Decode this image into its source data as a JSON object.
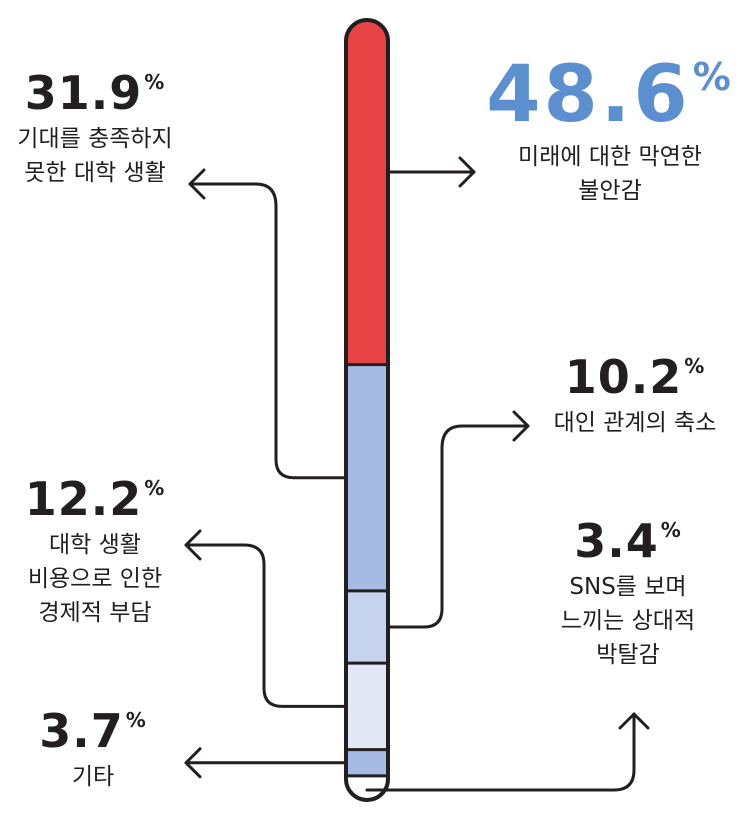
{
  "colors": {
    "red": "#e84344",
    "blue_dark": "#a6bbe3",
    "blue_mid": "#c5d3ee",
    "blue_light": "#e3e8f6",
    "outline": "#231f20",
    "accent_text": "#5b8fcf"
  },
  "chart_data": {
    "type": "stacked-bar",
    "percent_sign": "%",
    "segments": [
      {
        "value": 48.6,
        "value_label": "48.6",
        "lines": [
          "미래에 대한 막연한",
          "불안감"
        ],
        "color": "#e84344",
        "highlight": true
      },
      {
        "value": 31.9,
        "value_label": "31.9",
        "lines": [
          "기대를 충족하지",
          "못한 대학 생활"
        ],
        "color": "#a6bbe3"
      },
      {
        "value": 10.2,
        "value_label": "10.2",
        "lines": [
          "대인 관계의 축소"
        ],
        "color": "#c5d3ee"
      },
      {
        "value": 12.2,
        "value_label": "12.2",
        "lines": [
          "대학 생활",
          "비용으로 인한",
          "경제적 부담"
        ],
        "color": "#e3e8f6"
      },
      {
        "value": 3.7,
        "value_label": "3.7",
        "lines": [
          "기타"
        ],
        "color": "#a6bbe3"
      },
      {
        "value": 3.4,
        "value_label": "3.4",
        "lines": [
          "SNS를 보며",
          "느끼는 상대적",
          "박탈감"
        ],
        "color": "#ffffff"
      }
    ]
  }
}
